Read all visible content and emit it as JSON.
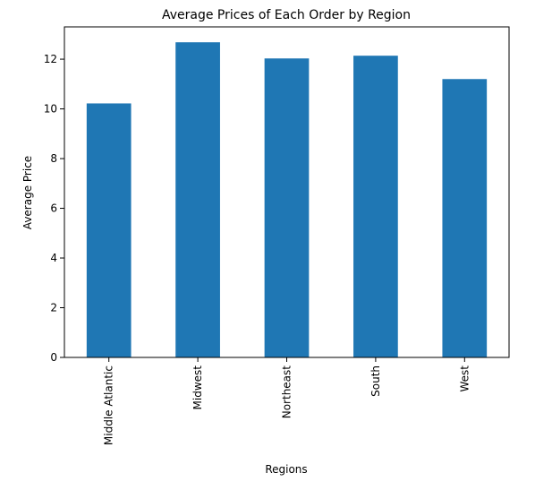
{
  "chart_data": {
    "type": "bar",
    "title": "Average Prices of Each Order by Region",
    "xlabel": "Regions",
    "ylabel": "Average Price",
    "categories": [
      "Middle Atlantic",
      "Midwest",
      "Northeast",
      "South",
      "West"
    ],
    "values": [
      10.22,
      12.68,
      12.03,
      12.14,
      11.2
    ],
    "ylim": [
      0,
      13.3
    ],
    "yticks": [
      0,
      2,
      4,
      6,
      8,
      10,
      12
    ],
    "bar_color": "#1f77b4",
    "grid": false,
    "legend": "none"
  }
}
